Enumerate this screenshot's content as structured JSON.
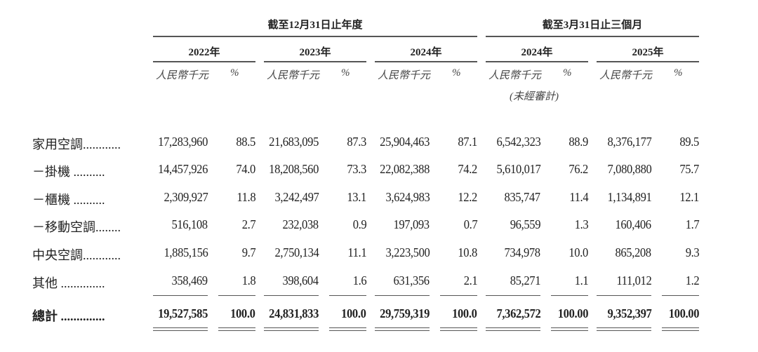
{
  "header": {
    "group_annual": "截至12月31日止年度",
    "group_quarter": "截至3月31日止三個月",
    "periods": [
      {
        "year": "2022年",
        "amount_unit": "人民幣千元",
        "pct_unit": "%"
      },
      {
        "year": "2023年",
        "amount_unit": "人民幣千元",
        "pct_unit": "%"
      },
      {
        "year": "2024年",
        "amount_unit": "人民幣千元",
        "pct_unit": "%"
      },
      {
        "year": "2024年",
        "amount_unit": "人民幣千元",
        "pct_unit": "%",
        "note": "(未經審計)"
      },
      {
        "year": "2025年",
        "amount_unit": "人民幣千元",
        "pct_unit": "%"
      }
    ]
  },
  "rows": [
    {
      "label": "家用空調............",
      "values": [
        [
          "17,283,960",
          "88.5"
        ],
        [
          "21,683,095",
          "87.3"
        ],
        [
          "25,904,463",
          "87.1"
        ],
        [
          "6,542,323",
          "88.9"
        ],
        [
          "8,376,177",
          "89.5"
        ]
      ]
    },
    {
      "label": "－掛機 ..........",
      "values": [
        [
          "14,457,926",
          "74.0"
        ],
        [
          "18,208,560",
          "73.3"
        ],
        [
          "22,082,388",
          "74.2"
        ],
        [
          "5,610,017",
          "76.2"
        ],
        [
          "7,080,880",
          "75.7"
        ]
      ]
    },
    {
      "label": "－櫃機 ..........",
      "values": [
        [
          "2,309,927",
          "11.8"
        ],
        [
          "3,242,497",
          "13.1"
        ],
        [
          "3,624,983",
          "12.2"
        ],
        [
          "835,747",
          "11.4"
        ],
        [
          "1,134,891",
          "12.1"
        ]
      ]
    },
    {
      "label": "－移動空調........",
      "values": [
        [
          "516,108",
          "2.7"
        ],
        [
          "232,038",
          "0.9"
        ],
        [
          "197,093",
          "0.7"
        ],
        [
          "96,559",
          "1.3"
        ],
        [
          "160,406",
          "1.7"
        ]
      ]
    },
    {
      "label": "中央空調............",
      "values": [
        [
          "1,885,156",
          "9.7"
        ],
        [
          "2,750,134",
          "11.1"
        ],
        [
          "3,223,500",
          "10.8"
        ],
        [
          "734,978",
          "10.0"
        ],
        [
          "865,208",
          "9.3"
        ]
      ]
    },
    {
      "label": "其他 ..............",
      "values": [
        [
          "358,469",
          "1.8"
        ],
        [
          "398,604",
          "1.6"
        ],
        [
          "631,356",
          "2.1"
        ],
        [
          "85,271",
          "1.1"
        ],
        [
          "111,012",
          "1.2"
        ]
      ]
    },
    {
      "label": "總計 ..............",
      "values": [
        [
          "19,527,585",
          "100.0"
        ],
        [
          "24,831,833",
          "100.0"
        ],
        [
          "29,759,319",
          "100.0"
        ],
        [
          "7,362,572",
          "100.00"
        ],
        [
          "9,352,397",
          "100.00"
        ]
      ],
      "bold": true
    }
  ]
}
